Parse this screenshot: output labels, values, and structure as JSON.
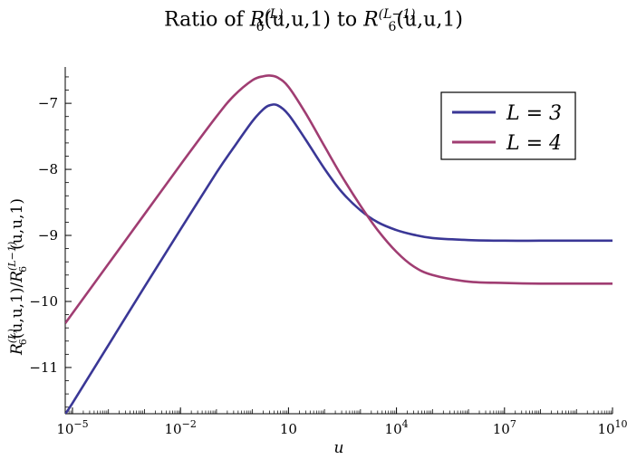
{
  "chart_data": {
    "type": "line",
    "title": "Ratio of R6^(L)(u,u,1) to R6^(L−1)(u,u,1)",
    "xlabel": "u",
    "ylabel": "R6^(L)(u,u,1)/R6^(L−1)(u,u,1)",
    "x_scale": "log",
    "xlim": [
      6.3e-06,
      10000000000
    ],
    "ylim": [
      -11.7,
      -6.45
    ],
    "x_ticks": [
      {
        "value": 1e-05,
        "label": "10^-5"
      },
      {
        "value": 0.01,
        "label": "10^-2"
      },
      {
        "value": 10,
        "label": "10"
      },
      {
        "value": 10000,
        "label": "10^4"
      },
      {
        "value": 10000000,
        "label": "10^7"
      },
      {
        "value": 10000000000,
        "label": "10^10"
      }
    ],
    "y_ticks": [
      -11,
      -10,
      -9,
      -8,
      -7
    ],
    "legend_position": "top-right",
    "series": [
      {
        "name": "L = 3",
        "color": "#3a3796",
        "x": [
          6.3e-06,
          1e-05,
          0.0001,
          0.001,
          0.01,
          0.1,
          0.3,
          1,
          2,
          3,
          5,
          10,
          30,
          100,
          300,
          1000,
          3000,
          10000,
          30000,
          100000,
          1000000,
          10000000,
          100000000,
          1000000000,
          10000000000
        ],
        "y": [
          -11.7,
          -11.54,
          -10.66,
          -9.78,
          -8.91,
          -8.05,
          -7.67,
          -7.27,
          -7.09,
          -7.03,
          -7.03,
          -7.17,
          -7.55,
          -7.99,
          -8.34,
          -8.62,
          -8.8,
          -8.92,
          -8.99,
          -9.04,
          -9.07,
          -9.08,
          -9.08,
          -9.08,
          -9.08
        ]
      },
      {
        "name": "L = 4",
        "color": "#a03d72",
        "x": [
          6.3e-06,
          1e-05,
          0.0001,
          0.001,
          0.01,
          0.1,
          0.3,
          1,
          2,
          3,
          5,
          10,
          30,
          100,
          300,
          1000,
          3000,
          10000,
          30000,
          100000,
          1000000,
          10000000,
          100000000,
          1000000000,
          10000000000
        ],
        "y": [
          -10.33,
          -10.18,
          -9.43,
          -8.68,
          -7.93,
          -7.2,
          -6.89,
          -6.65,
          -6.59,
          -6.58,
          -6.61,
          -6.75,
          -7.15,
          -7.65,
          -8.1,
          -8.55,
          -8.92,
          -9.25,
          -9.47,
          -9.6,
          -9.7,
          -9.72,
          -9.73,
          -9.73,
          -9.73
        ]
      }
    ]
  }
}
